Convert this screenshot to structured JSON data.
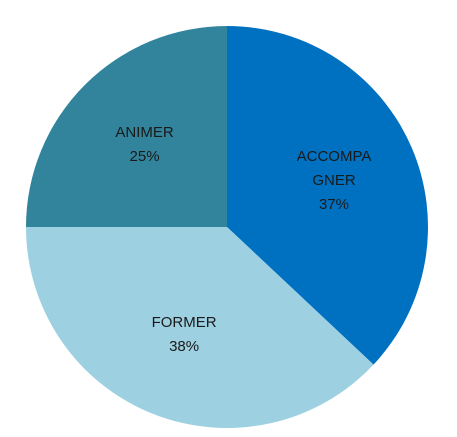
{
  "chart_data": {
    "type": "pie",
    "categories": [
      "ACCOMPAGNER",
      "FORMER",
      "ANIMER"
    ],
    "values": [
      37,
      38,
      25
    ],
    "value_labels": [
      "37%",
      "38%",
      "25%"
    ],
    "colors": [
      "#0070c0",
      "#9dd0e1",
      "#31849b"
    ]
  }
}
